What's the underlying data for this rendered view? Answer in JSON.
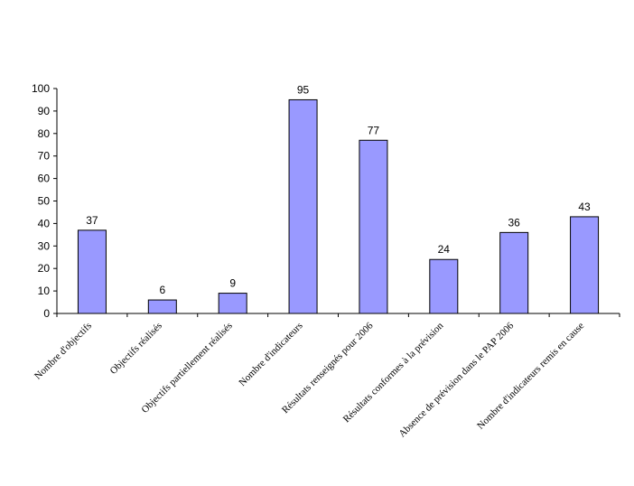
{
  "chart_data": {
    "type": "bar",
    "categories": [
      "Nombre d'objectifs",
      "Objectifs réalisés",
      "Objectifs partiellement réalisés",
      "Nombre d'indicateurs",
      "Résultats renseignés pour 2006",
      "Résultats conformes à la prévision",
      "Absence de prévision dans le PAP 2006",
      "Nombre d'indicateurs remis en cause"
    ],
    "values": [
      37,
      6,
      9,
      95,
      77,
      24,
      36,
      43
    ],
    "color": "#9999ff",
    "ylim": [
      0,
      100
    ],
    "yticks": [
      0,
      10,
      20,
      30,
      40,
      50,
      60,
      70,
      80,
      90,
      100
    ],
    "grid": false
  }
}
